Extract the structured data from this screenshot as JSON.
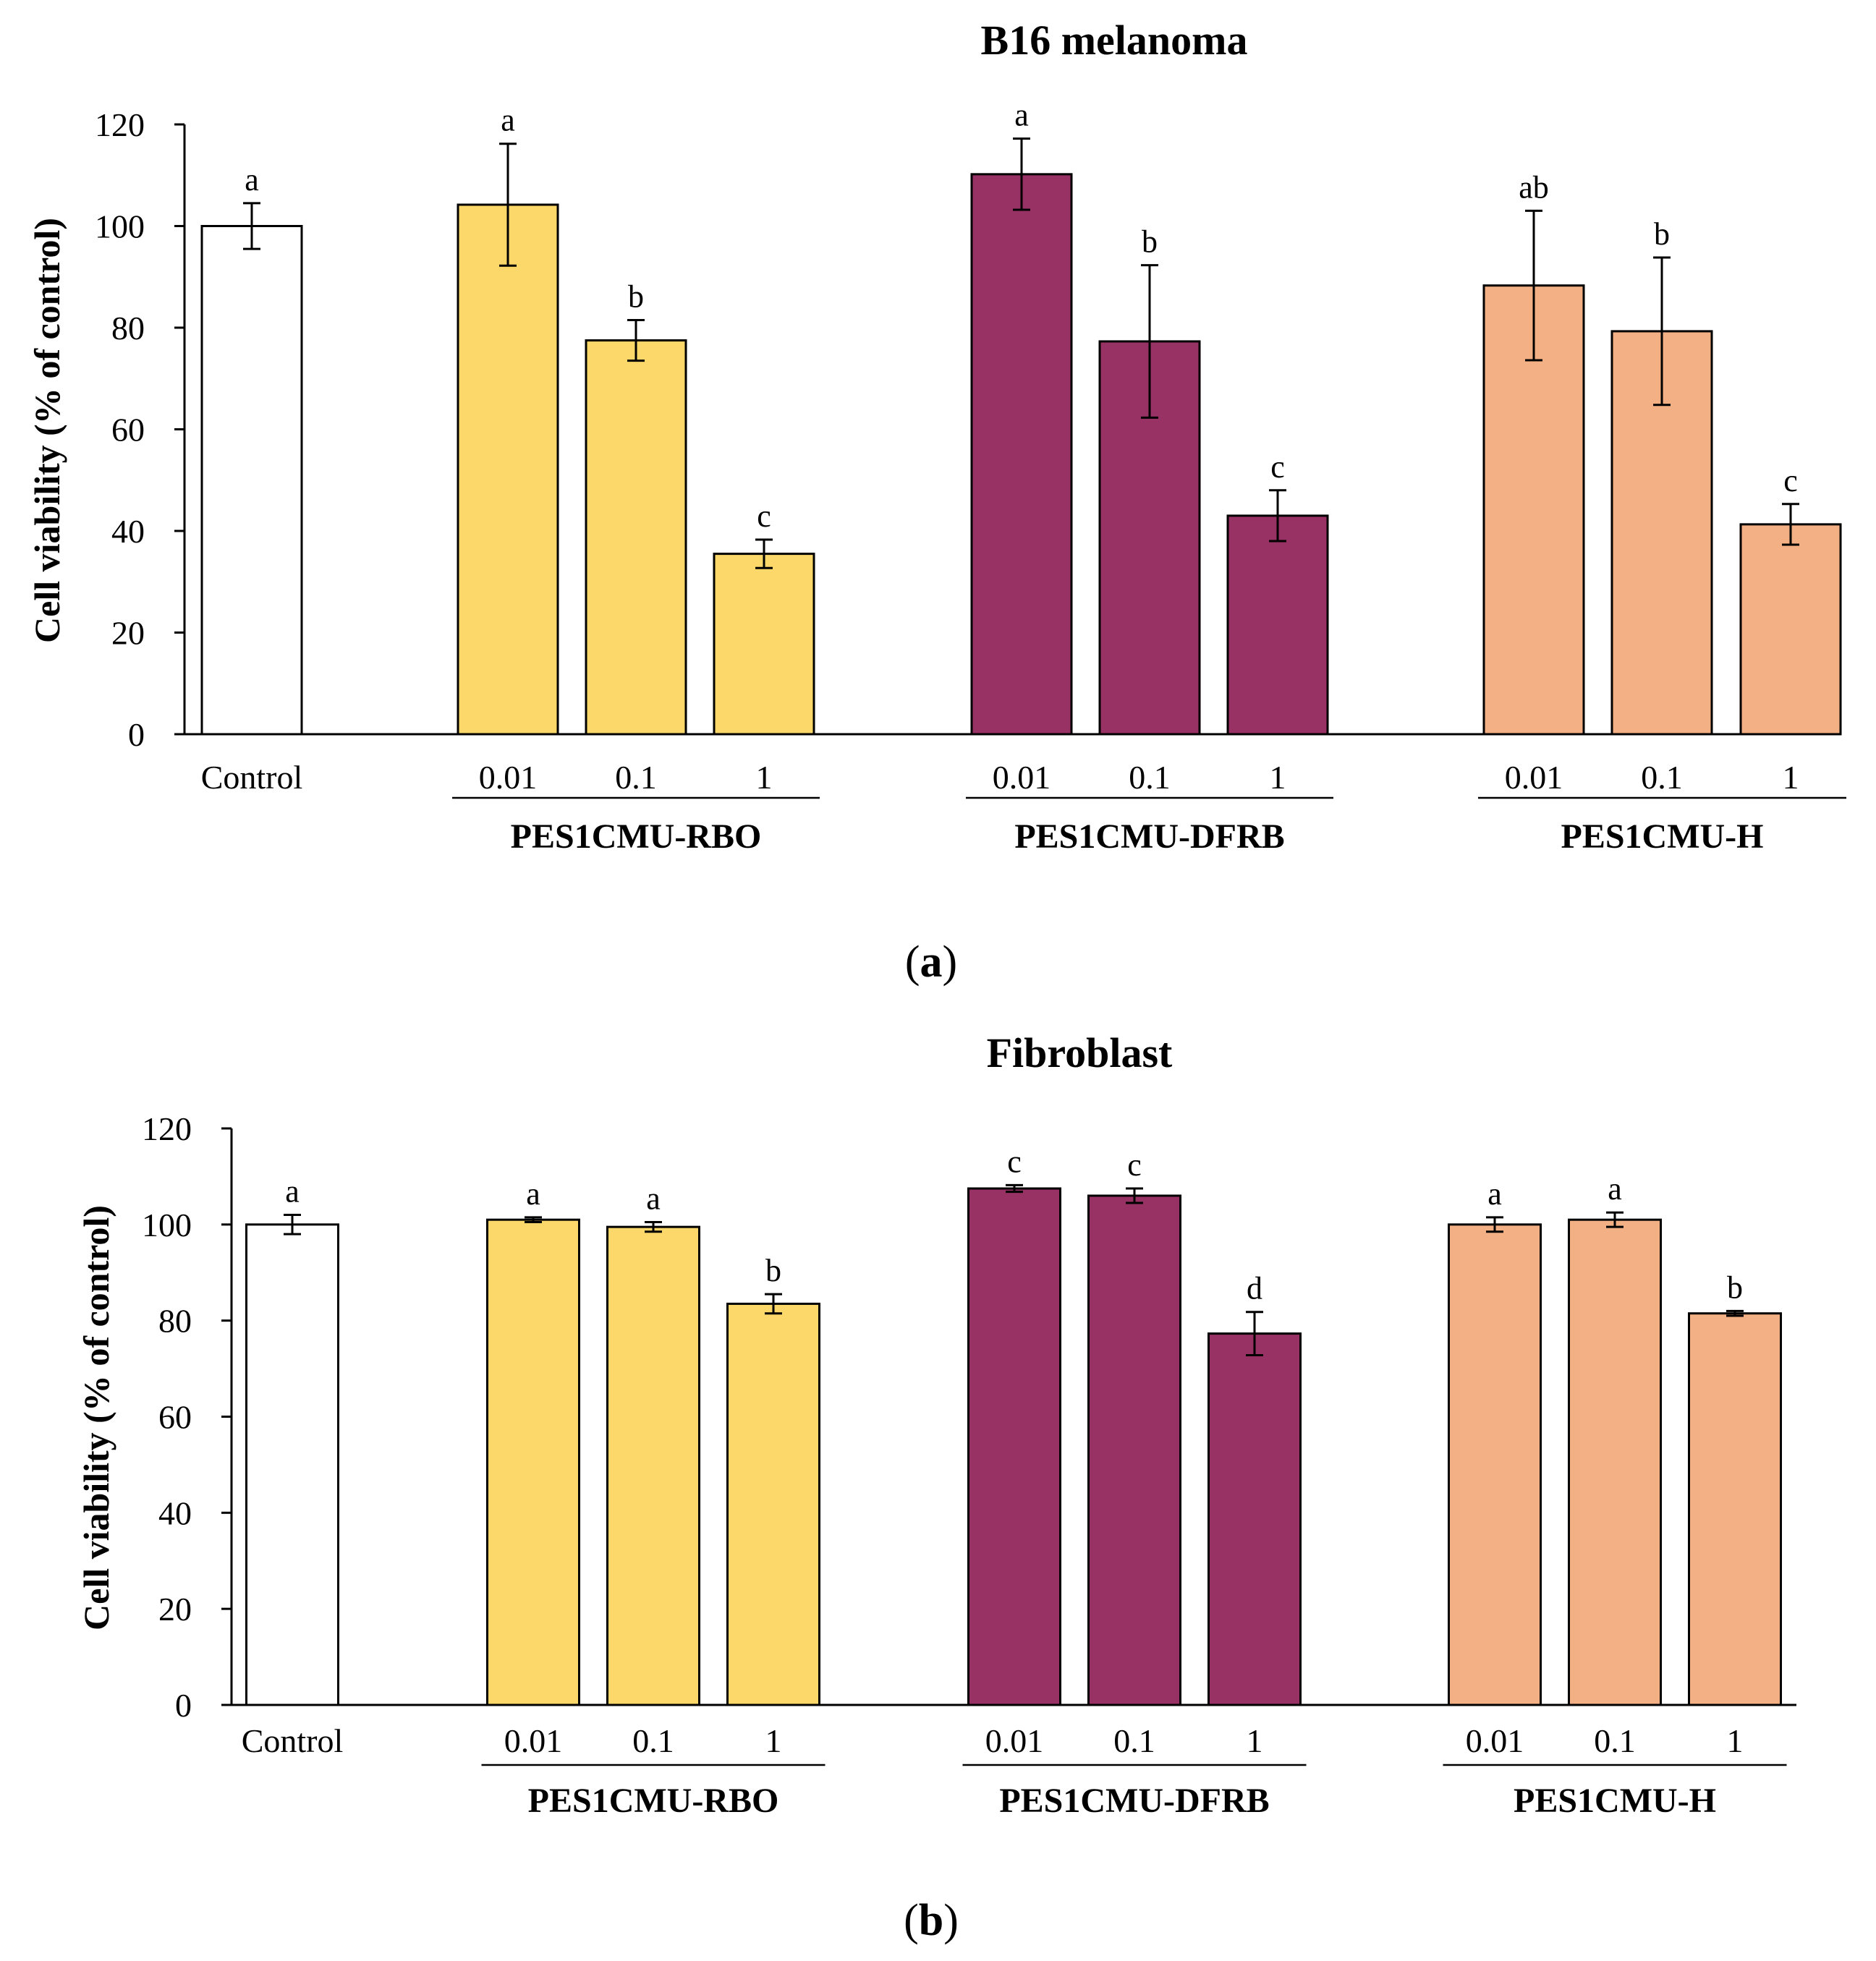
{
  "colors": {
    "control": "#ffffff",
    "PES1CMU-RBO": "#fcd76a",
    "PES1CMU-DFRB": "#983264",
    "PES1CMU-H": "#f3b084",
    "axis": "#000000"
  },
  "chart_data": [
    {
      "type": "bar",
      "title": "B16 melanoma",
      "panel_label": {
        "open": "(",
        "letter": "a",
        "close": ")"
      },
      "ylabel": "Cell viability (% of control)",
      "ylim": [
        0,
        120
      ],
      "yticks": [
        0,
        20,
        40,
        60,
        80,
        100,
        120
      ],
      "categories": [
        "Control",
        "0.01",
        "0.1",
        "1",
        "0.01",
        "0.1",
        "1",
        "0.01",
        "0.1",
        "1"
      ],
      "groups": [
        {
          "name": "",
          "color_key": "control",
          "bars": [
            {
              "label": "Control",
              "value": 100,
              "error": 4.5,
              "sig": "a"
            }
          ]
        },
        {
          "name": "PES1CMU-RBO",
          "color_key": "PES1CMU-RBO",
          "bars": [
            {
              "label": "0.01",
              "value": 104.2,
              "error": 12,
              "sig": "a"
            },
            {
              "label": "0.1",
              "value": 77.5,
              "error": 4,
              "sig": "b"
            },
            {
              "label": "1",
              "value": 35.5,
              "error": 2.8,
              "sig": "c"
            }
          ]
        },
        {
          "name": "PES1CMU-DFRB",
          "color_key": "PES1CMU-DFRB",
          "bars": [
            {
              "label": "0.01",
              "value": 110.2,
              "error": 7,
              "sig": "a"
            },
            {
              "label": "0.1",
              "value": 77.3,
              "error": 15,
              "sig": "b"
            },
            {
              "label": "1",
              "value": 43,
              "error": 5,
              "sig": "c"
            }
          ]
        },
        {
          "name": "PES1CMU-H",
          "color_key": "PES1CMU-H",
          "bars": [
            {
              "label": "0.01",
              "value": 88.3,
              "error": 14.7,
              "sig": "ab"
            },
            {
              "label": "0.1",
              "value": 79.3,
              "error": 14.5,
              "sig": "b"
            },
            {
              "label": "1",
              "value": 41.3,
              "error": 4,
              "sig": "c"
            }
          ]
        }
      ]
    },
    {
      "type": "bar",
      "title": "Fibroblast",
      "panel_label": {
        "open": "(",
        "letter": "b",
        "close": ")"
      },
      "ylabel": "Cell viability (% of control)",
      "ylim": [
        0,
        120
      ],
      "yticks": [
        0,
        20,
        40,
        60,
        80,
        100,
        120
      ],
      "categories": [
        "Control",
        "0.01",
        "0.1",
        "1",
        "0.01",
        "0.1",
        "1",
        "0.01",
        "0.1",
        "1"
      ],
      "groups": [
        {
          "name": "",
          "color_key": "control",
          "bars": [
            {
              "label": "Control",
              "value": 100,
              "error": 2,
              "sig": "a"
            }
          ]
        },
        {
          "name": "PES1CMU-RBO",
          "color_key": "PES1CMU-RBO",
          "bars": [
            {
              "label": "0.01",
              "value": 101,
              "error": 0.5,
              "sig": "a"
            },
            {
              "label": "0.1",
              "value": 99.5,
              "error": 1,
              "sig": "a"
            },
            {
              "label": "1",
              "value": 83.5,
              "error": 2,
              "sig": "b"
            }
          ]
        },
        {
          "name": "PES1CMU-DFRB",
          "color_key": "PES1CMU-DFRB",
          "bars": [
            {
              "label": "0.01",
              "value": 107.5,
              "error": 0.7,
              "sig": "c"
            },
            {
              "label": "0.1",
              "value": 106,
              "error": 1.5,
              "sig": "c"
            },
            {
              "label": "1",
              "value": 77.3,
              "error": 4.5,
              "sig": "d"
            }
          ]
        },
        {
          "name": "PES1CMU-H",
          "color_key": "PES1CMU-H",
          "bars": [
            {
              "label": "0.01",
              "value": 100,
              "error": 1.5,
              "sig": "a"
            },
            {
              "label": "0.1",
              "value": 101,
              "error": 1.5,
              "sig": "a"
            },
            {
              "label": "1",
              "value": 81.5,
              "error": 0.5,
              "sig": "b"
            }
          ]
        }
      ]
    }
  ]
}
